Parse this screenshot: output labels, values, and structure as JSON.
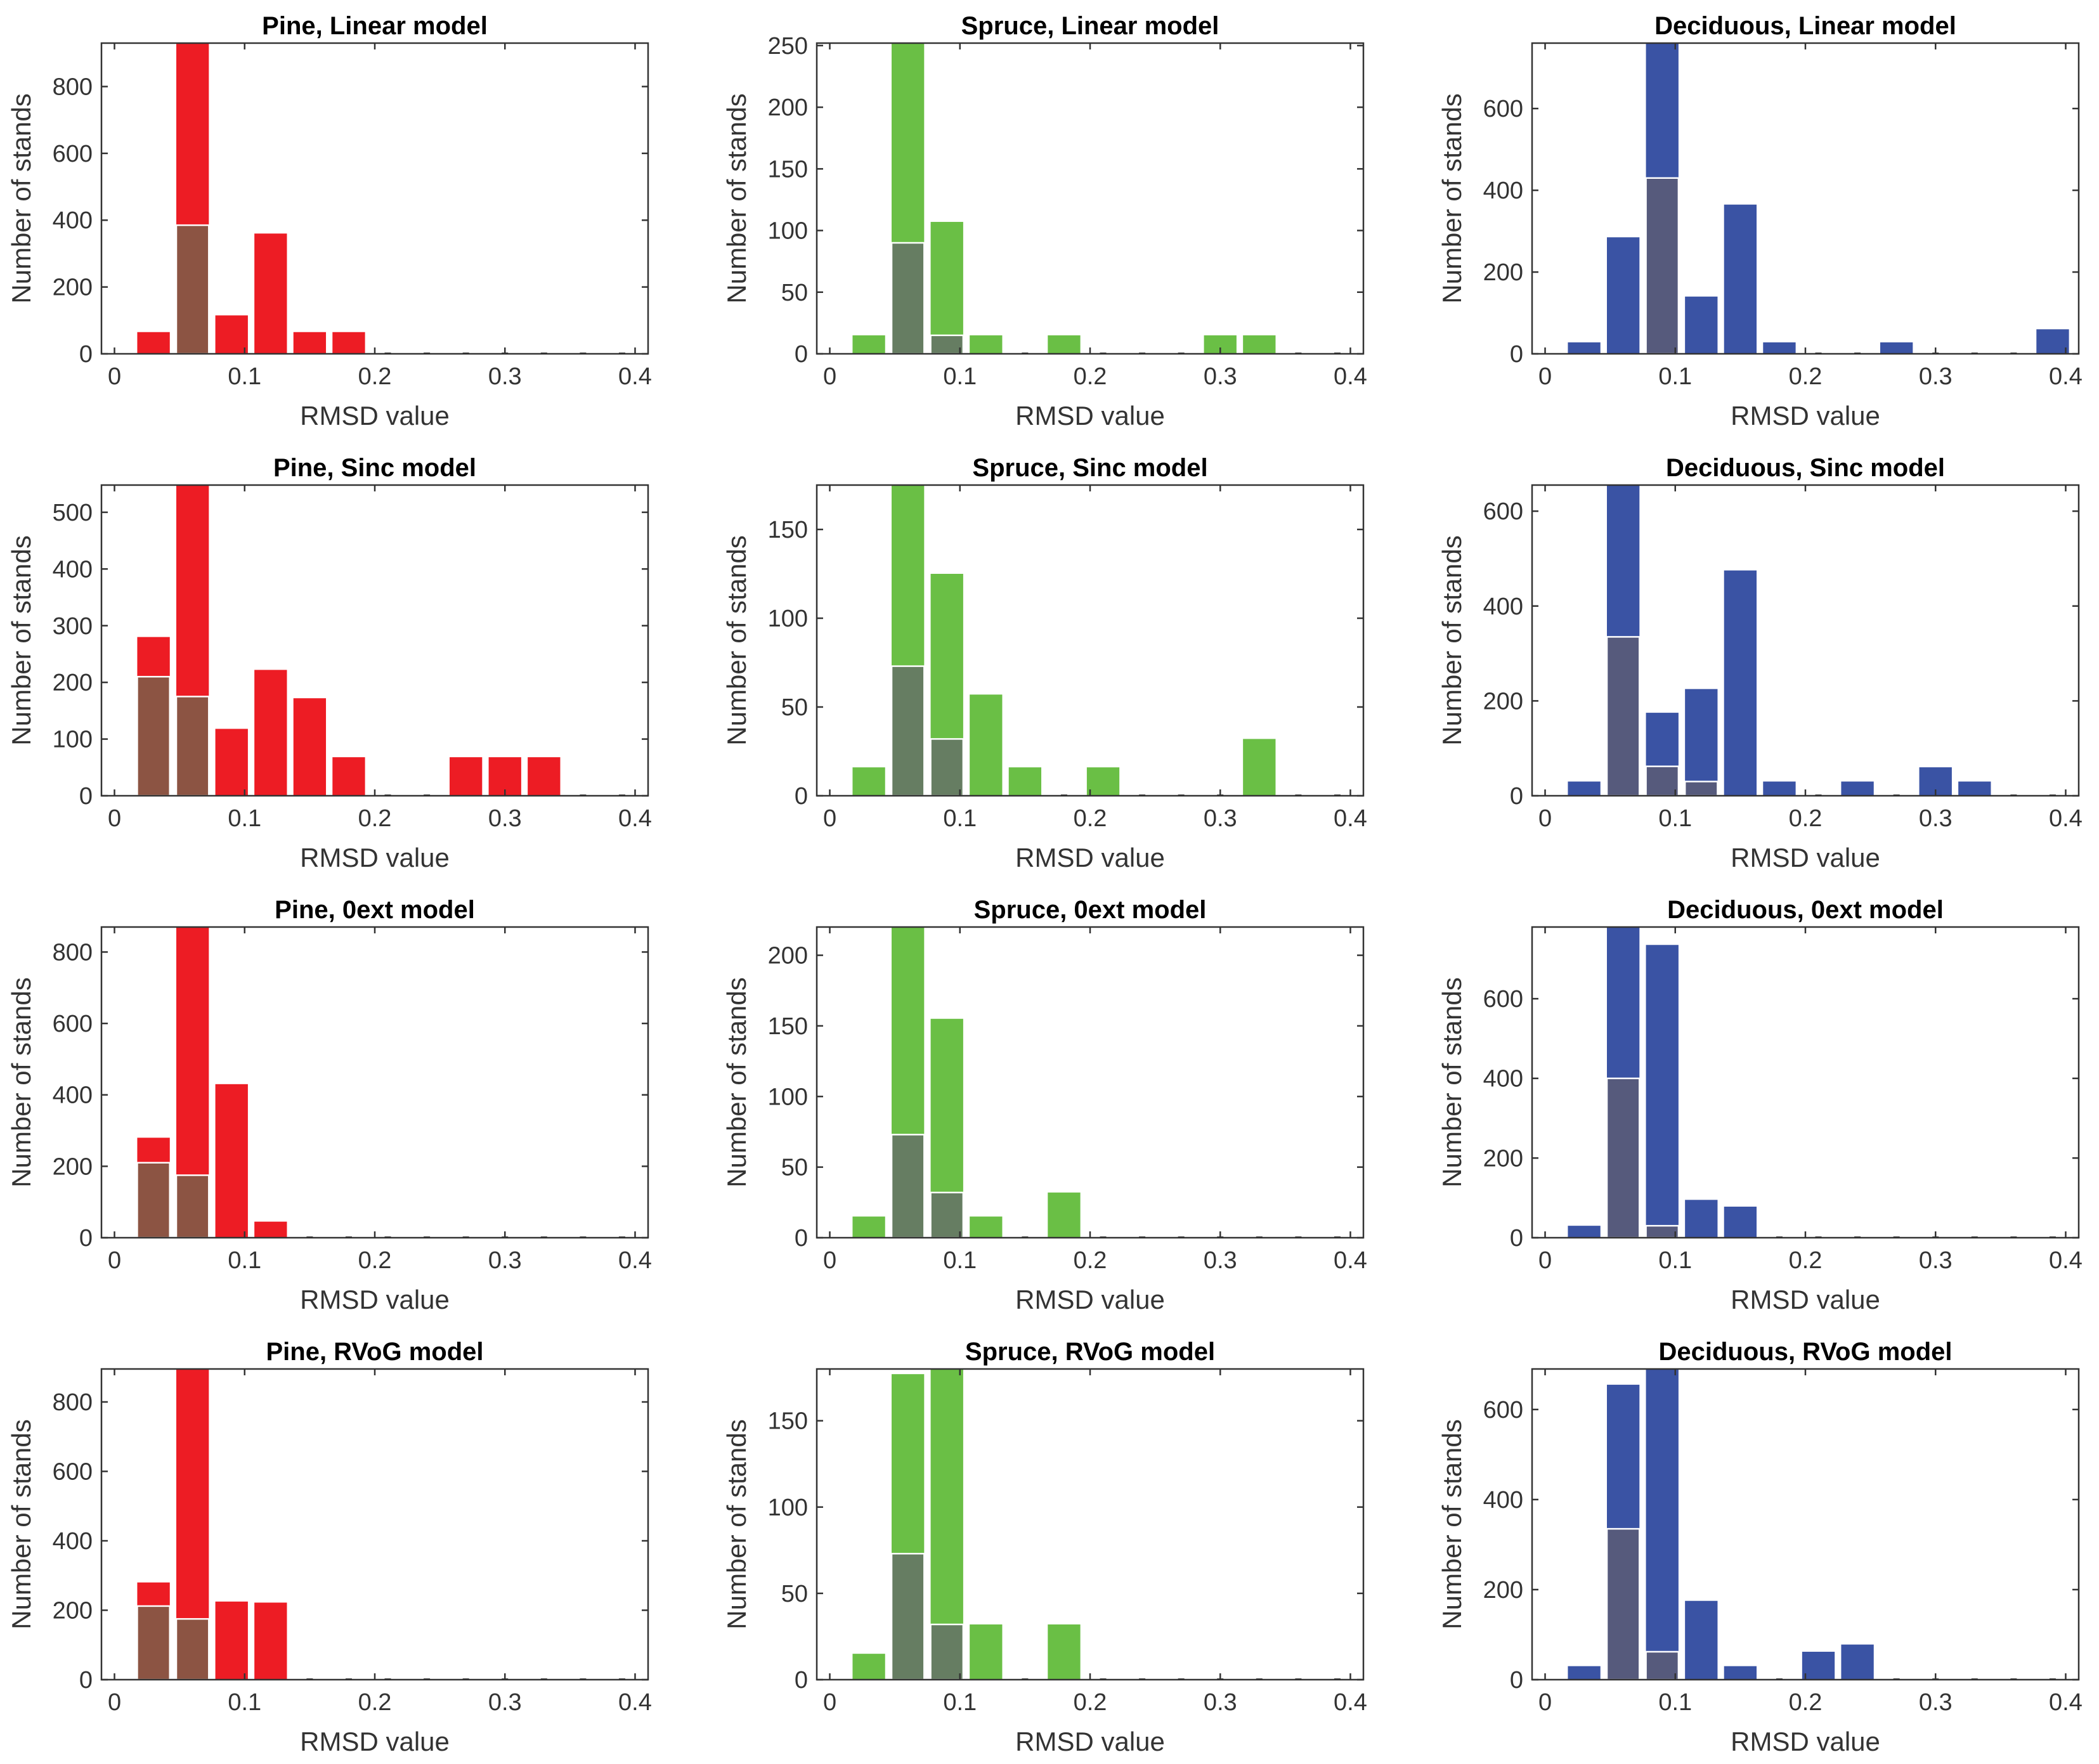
{
  "chart_data": [
    {
      "type": "bar",
      "title": "Pine, Linear model",
      "xlabel": "RMSD value",
      "ylabel": "Number of stands",
      "xlim": [
        -0.01,
        0.41
      ],
      "ylim": [
        0,
        930
      ],
      "xticks": [
        0,
        0.1,
        0.2,
        0.3,
        0.4
      ],
      "xtick_labels": [
        "0",
        "0.1",
        "0.2",
        "0.3",
        "0.4"
      ],
      "yticks": [
        0,
        200,
        400,
        600,
        800
      ],
      "color": "#ed1c24",
      "overlay_color": "#8c5443",
      "bins": [
        0.03,
        0.06,
        0.09,
        0.12,
        0.15,
        0.18,
        0.21,
        0.24,
        0.27,
        0.3,
        0.33,
        0.36,
        0.39
      ],
      "series": [
        {
          "values": [
            65,
            930,
            115,
            360,
            65,
            65,
            0,
            0,
            0,
            0,
            0,
            0,
            0
          ]
        },
        {
          "values": [
            0,
            385,
            0,
            0,
            0,
            0,
            0,
            0,
            0,
            0,
            0,
            0,
            0
          ]
        }
      ]
    },
    {
      "type": "bar",
      "title": "Spruce, Linear model",
      "xlabel": "RMSD value",
      "ylabel": "Number of stands",
      "xlim": [
        -0.01,
        0.41
      ],
      "ylim": [
        0,
        252
      ],
      "xticks": [
        0,
        0.1,
        0.2,
        0.3,
        0.4
      ],
      "xtick_labels": [
        "0",
        "0.1",
        "0.2",
        "0.3",
        "0.4"
      ],
      "yticks": [
        0,
        50,
        100,
        150,
        200,
        250
      ],
      "color": "#6abf45",
      "overlay_color": "#667d62",
      "bins": [
        0.03,
        0.06,
        0.09,
        0.12,
        0.15,
        0.18,
        0.21,
        0.24,
        0.27,
        0.3,
        0.33,
        0.36,
        0.39
      ],
      "series": [
        {
          "values": [
            15,
            252,
            107,
            15,
            0,
            15,
            0,
            0,
            0,
            15,
            15,
            0,
            0
          ]
        },
        {
          "values": [
            0,
            90,
            15,
            0,
            0,
            0,
            0,
            0,
            0,
            0,
            0,
            0,
            0
          ]
        }
      ]
    },
    {
      "type": "bar",
      "title": "Deciduous, Linear model",
      "xlabel": "RMSD value",
      "ylabel": "Number of stands",
      "xlim": [
        -0.01,
        0.41
      ],
      "ylim": [
        0,
        760
      ],
      "xticks": [
        0,
        0.1,
        0.2,
        0.3,
        0.4
      ],
      "xtick_labels": [
        "0",
        "0.1",
        "0.2",
        "0.3",
        "0.4"
      ],
      "yticks": [
        0,
        200,
        400,
        600
      ],
      "color": "#3a53a4",
      "overlay_color": "#565a7c",
      "bins": [
        0.03,
        0.06,
        0.09,
        0.12,
        0.15,
        0.18,
        0.21,
        0.24,
        0.27,
        0.3,
        0.33,
        0.36,
        0.39
      ],
      "series": [
        {
          "values": [
            28,
            285,
            760,
            140,
            365,
            28,
            0,
            0,
            28,
            0,
            0,
            0,
            60
          ]
        },
        {
          "values": [
            0,
            0,
            430,
            0,
            0,
            0,
            0,
            0,
            0,
            0,
            0,
            0,
            0
          ]
        }
      ]
    },
    {
      "type": "bar",
      "title": "Pine, Sinc model",
      "xlabel": "RMSD value",
      "ylabel": "Number of stands",
      "xlim": [
        -0.01,
        0.41
      ],
      "ylim": [
        0,
        548
      ],
      "xticks": [
        0,
        0.1,
        0.2,
        0.3,
        0.4
      ],
      "xtick_labels": [
        "0",
        "0.1",
        "0.2",
        "0.3",
        "0.4"
      ],
      "yticks": [
        0,
        100,
        200,
        300,
        400,
        500
      ],
      "color": "#ed1c24",
      "overlay_color": "#8c5443",
      "bins": [
        0.03,
        0.06,
        0.09,
        0.12,
        0.15,
        0.18,
        0.21,
        0.24,
        0.27,
        0.3,
        0.33,
        0.36,
        0.39
      ],
      "series": [
        {
          "values": [
            280,
            548,
            118,
            222,
            172,
            68,
            0,
            0,
            68,
            68,
            68,
            0,
            0
          ]
        },
        {
          "values": [
            210,
            175,
            0,
            0,
            0,
            0,
            0,
            0,
            0,
            0,
            0,
            0,
            0
          ]
        }
      ]
    },
    {
      "type": "bar",
      "title": "Spruce, Sinc model",
      "xlabel": "RMSD value",
      "ylabel": "Number of stands",
      "xlim": [
        -0.01,
        0.41
      ],
      "ylim": [
        0,
        175
      ],
      "xticks": [
        0,
        0.1,
        0.2,
        0.3,
        0.4
      ],
      "xtick_labels": [
        "0",
        "0.1",
        "0.2",
        "0.3",
        "0.4"
      ],
      "yticks": [
        0,
        50,
        100,
        150
      ],
      "color": "#6abf45",
      "overlay_color": "#667d62",
      "bins": [
        0.03,
        0.06,
        0.09,
        0.12,
        0.15,
        0.18,
        0.21,
        0.24,
        0.27,
        0.3,
        0.33,
        0.36,
        0.39
      ],
      "series": [
        {
          "values": [
            16,
            175,
            125,
            57,
            16,
            0,
            16,
            0,
            0,
            0,
            32,
            0,
            0
          ]
        },
        {
          "values": [
            0,
            73,
            32,
            0,
            0,
            0,
            0,
            0,
            0,
            0,
            0,
            0,
            0
          ]
        }
      ]
    },
    {
      "type": "bar",
      "title": "Deciduous, Sinc model",
      "xlabel": "RMSD value",
      "ylabel": "Number of stands",
      "xlim": [
        -0.01,
        0.41
      ],
      "ylim": [
        0,
        655
      ],
      "xticks": [
        0,
        0.1,
        0.2,
        0.3,
        0.4
      ],
      "xtick_labels": [
        "0",
        "0.1",
        "0.2",
        "0.3",
        "0.4"
      ],
      "yticks": [
        0,
        200,
        400,
        600
      ],
      "color": "#3a53a4",
      "overlay_color": "#565a7c",
      "bins": [
        0.03,
        0.06,
        0.09,
        0.12,
        0.15,
        0.18,
        0.21,
        0.24,
        0.27,
        0.3,
        0.33,
        0.36,
        0.39
      ],
      "series": [
        {
          "values": [
            30,
            655,
            175,
            225,
            475,
            30,
            0,
            30,
            0,
            60,
            30,
            0,
            0
          ]
        },
        {
          "values": [
            0,
            335,
            62,
            30,
            0,
            0,
            0,
            0,
            0,
            0,
            0,
            0,
            0
          ]
        }
      ]
    },
    {
      "type": "bar",
      "title": "Pine, 0ext model",
      "xlabel": "RMSD value",
      "ylabel": "Number of stands",
      "xlim": [
        -0.01,
        0.41
      ],
      "ylim": [
        0,
        870
      ],
      "xticks": [
        0,
        0.1,
        0.2,
        0.3,
        0.4
      ],
      "xtick_labels": [
        "0",
        "0.1",
        "0.2",
        "0.3",
        "0.4"
      ],
      "yticks": [
        0,
        200,
        400,
        600,
        800
      ],
      "color": "#ed1c24",
      "overlay_color": "#8c5443",
      "bins": [
        0.03,
        0.06,
        0.09,
        0.12,
        0.15,
        0.18,
        0.21,
        0.24,
        0.27,
        0.3,
        0.33,
        0.36,
        0.39
      ],
      "series": [
        {
          "values": [
            280,
            870,
            430,
            45,
            0,
            0,
            0,
            0,
            0,
            0,
            0,
            0,
            0
          ]
        },
        {
          "values": [
            210,
            175,
            0,
            0,
            0,
            0,
            0,
            0,
            0,
            0,
            0,
            0,
            0
          ]
        }
      ]
    },
    {
      "type": "bar",
      "title": "Spruce, 0ext model",
      "xlabel": "RMSD value",
      "ylabel": "Number of stands",
      "xlim": [
        -0.01,
        0.41
      ],
      "ylim": [
        0,
        220
      ],
      "xticks": [
        0,
        0.1,
        0.2,
        0.3,
        0.4
      ],
      "xtick_labels": [
        "0",
        "0.1",
        "0.2",
        "0.3",
        "0.4"
      ],
      "yticks": [
        0,
        50,
        100,
        150,
        200
      ],
      "color": "#6abf45",
      "overlay_color": "#667d62",
      "bins": [
        0.03,
        0.06,
        0.09,
        0.12,
        0.15,
        0.18,
        0.21,
        0.24,
        0.27,
        0.3,
        0.33,
        0.36,
        0.39
      ],
      "series": [
        {
          "values": [
            15,
            220,
            155,
            15,
            0,
            32,
            0,
            0,
            0,
            0,
            0,
            0,
            0
          ]
        },
        {
          "values": [
            0,
            73,
            32,
            0,
            0,
            0,
            0,
            0,
            0,
            0,
            0,
            0,
            0
          ]
        }
      ]
    },
    {
      "type": "bar",
      "title": "Deciduous, 0ext model",
      "xlabel": "RMSD value",
      "ylabel": "Number of stands",
      "xlim": [
        -0.01,
        0.41
      ],
      "ylim": [
        0,
        780
      ],
      "xticks": [
        0,
        0.1,
        0.2,
        0.3,
        0.4
      ],
      "xtick_labels": [
        "0",
        "0.1",
        "0.2",
        "0.3",
        "0.4"
      ],
      "yticks": [
        0,
        200,
        400,
        600
      ],
      "color": "#3a53a4",
      "overlay_color": "#565a7c",
      "bins": [
        0.03,
        0.06,
        0.09,
        0.12,
        0.15,
        0.18,
        0.21,
        0.24,
        0.27,
        0.3,
        0.33,
        0.36,
        0.39
      ],
      "series": [
        {
          "values": [
            30,
            780,
            735,
            95,
            78,
            0,
            0,
            0,
            0,
            0,
            0,
            0,
            0
          ]
        },
        {
          "values": [
            0,
            400,
            30,
            0,
            0,
            0,
            0,
            0,
            0,
            0,
            0,
            0,
            0
          ]
        }
      ]
    },
    {
      "type": "bar",
      "title": "Pine, RVoG model",
      "xlabel": "RMSD value",
      "ylabel": "Number of stands",
      "xlim": [
        -0.01,
        0.41
      ],
      "ylim": [
        0,
        895
      ],
      "xticks": [
        0,
        0.1,
        0.2,
        0.3,
        0.4
      ],
      "xtick_labels": [
        "0",
        "0.1",
        "0.2",
        "0.3",
        "0.4"
      ],
      "yticks": [
        0,
        200,
        400,
        600,
        800
      ],
      "color": "#ed1c24",
      "overlay_color": "#8c5443",
      "bins": [
        0.03,
        0.06,
        0.09,
        0.12,
        0.15,
        0.18,
        0.21,
        0.24,
        0.27,
        0.3,
        0.33,
        0.36,
        0.39
      ],
      "series": [
        {
          "values": [
            280,
            895,
            225,
            222,
            0,
            0,
            0,
            0,
            0,
            0,
            0,
            0,
            0
          ]
        },
        {
          "values": [
            212,
            175,
            0,
            0,
            0,
            0,
            0,
            0,
            0,
            0,
            0,
            0,
            0
          ]
        }
      ]
    },
    {
      "type": "bar",
      "title": "Spruce, RVoG model",
      "xlabel": "RMSD value",
      "ylabel": "Number of stands",
      "xlim": [
        -0.01,
        0.41
      ],
      "ylim": [
        0,
        180
      ],
      "xticks": [
        0,
        0.1,
        0.2,
        0.3,
        0.4
      ],
      "xtick_labels": [
        "0",
        "0.1",
        "0.2",
        "0.3",
        "0.4"
      ],
      "yticks": [
        0,
        50,
        100,
        150
      ],
      "color": "#6abf45",
      "overlay_color": "#667d62",
      "bins": [
        0.03,
        0.06,
        0.09,
        0.12,
        0.15,
        0.18,
        0.21,
        0.24,
        0.27,
        0.3,
        0.33,
        0.36,
        0.39
      ],
      "series": [
        {
          "values": [
            15,
            177,
            180,
            32,
            0,
            32,
            0,
            0,
            0,
            0,
            0,
            0,
            0
          ]
        },
        {
          "values": [
            0,
            73,
            32,
            0,
            0,
            0,
            0,
            0,
            0,
            0,
            0,
            0,
            0
          ]
        }
      ]
    },
    {
      "type": "bar",
      "title": "Deciduous, RVoG model",
      "xlabel": "RMSD value",
      "ylabel": "Number of stands",
      "xlim": [
        -0.01,
        0.41
      ],
      "ylim": [
        0,
        690
      ],
      "xticks": [
        0,
        0.1,
        0.2,
        0.3,
        0.4
      ],
      "xtick_labels": [
        "0",
        "0.1",
        "0.2",
        "0.3",
        "0.4"
      ],
      "yticks": [
        0,
        200,
        400,
        600
      ],
      "color": "#3a53a4",
      "overlay_color": "#565a7c",
      "bins": [
        0.03,
        0.06,
        0.09,
        0.12,
        0.15,
        0.18,
        0.21,
        0.24,
        0.27,
        0.3,
        0.33,
        0.36,
        0.39
      ],
      "series": [
        {
          "values": [
            30,
            655,
            690,
            175,
            30,
            0,
            62,
            78,
            0,
            0,
            0,
            0,
            0
          ]
        },
        {
          "values": [
            0,
            335,
            62,
            0,
            0,
            0,
            0,
            0,
            0,
            0,
            0,
            0,
            0
          ]
        }
      ]
    }
  ]
}
